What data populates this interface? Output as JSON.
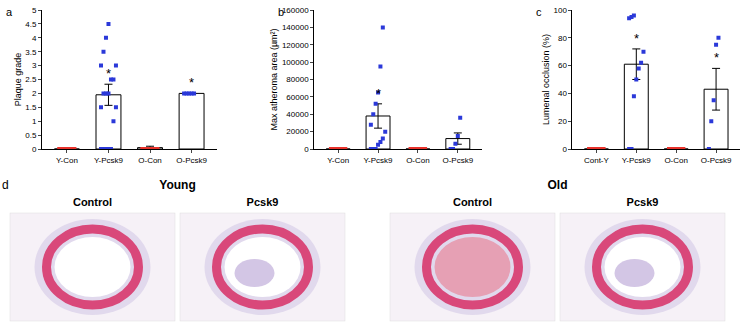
{
  "chart_data": [
    {
      "type": "bar",
      "panel": "a",
      "y_label": "Plaque grade",
      "categories": [
        "Y-Con",
        "Y-Pcsk9",
        "O-Con",
        "O-Pcsk9"
      ],
      "values": [
        0,
        1.95,
        0.05,
        2
      ],
      "error": [
        0,
        0.38,
        0.05,
        0
      ],
      "points": [
        [
          0,
          0,
          0,
          0,
          0,
          0,
          0,
          0,
          0
        ],
        [
          0,
          0,
          0,
          0,
          0,
          1,
          1.5,
          1.5,
          2,
          2,
          2,
          2.5,
          2.5,
          3,
          3,
          3.5,
          4,
          4.5
        ],
        [
          0,
          0,
          0,
          0,
          0,
          0,
          0,
          0
        ],
        [
          2,
          2,
          2,
          2,
          2
        ]
      ],
      "color": "#ffffff",
      "colors": [
        "#e8322b",
        "#2b39d9",
        "#e8322b",
        "#2b39d9"
      ],
      "marker": "square",
      "ylim": [
        0,
        5
      ],
      "yticks": [
        0,
        0.5,
        1,
        1.5,
        2,
        2.5,
        3,
        3.5,
        4,
        4.5,
        5
      ],
      "grid": false,
      "annotations": [
        {
          "category": "Y-Pcsk9",
          "text": "*"
        },
        {
          "category": "O-Pcsk9",
          "text": "*"
        }
      ]
    },
    {
      "type": "bar",
      "panel": "b",
      "y_label": "Max atheroma area (µm²)",
      "categories": [
        "Y-Con",
        "Y-Pcsk9",
        "O-Con",
        "O-Pcsk9"
      ],
      "values": [
        0,
        38000,
        0,
        12000
      ],
      "error": [
        0,
        14000,
        0,
        6500
      ],
      "points": [
        [
          0,
          0,
          0,
          0,
          0,
          0,
          0,
          0
        ],
        [
          0,
          0,
          0,
          5000,
          8000,
          12000,
          20000,
          28000,
          40000,
          52000,
          65000,
          95000,
          140000
        ],
        [
          0,
          0,
          0,
          0,
          0,
          0,
          0,
          0
        ],
        [
          0,
          0,
          6000,
          15000,
          36000
        ]
      ],
      "color": "#ffffff",
      "colors": [
        "#e8322b",
        "#2b39d9",
        "#e8322b",
        "#2b39d9"
      ],
      "marker": "square",
      "ylim": [
        0,
        160000
      ],
      "yticks": [
        0,
        20000,
        40000,
        60000,
        80000,
        100000,
        120000,
        140000,
        160000
      ],
      "grid": false,
      "annotations": [
        {
          "category": "Y-Pcsk9",
          "text": "*"
        }
      ]
    },
    {
      "type": "bar",
      "panel": "c",
      "y_label": "Lumenal occlusion (%)",
      "categories": [
        "Cont-Y",
        "Y-Pcsk9",
        "O-Con",
        "O-Pcsk9"
      ],
      "values": [
        0,
        61,
        0,
        43
      ],
      "error": [
        0,
        11,
        0,
        15
      ],
      "points": [
        [
          0,
          0,
          0,
          0,
          0,
          0,
          0,
          0,
          0
        ],
        [
          0,
          0,
          38,
          50,
          58,
          62,
          70,
          94,
          95,
          96
        ],
        [
          0,
          0,
          0,
          0,
          0,
          0,
          0,
          0
        ],
        [
          0,
          20,
          35,
          75,
          80
        ]
      ],
      "color": "#ffffff",
      "colors": [
        "#e8322b",
        "#2b39d9",
        "#e8322b",
        "#2b39d9"
      ],
      "marker": "square",
      "ylim": [
        0,
        100
      ],
      "yticks": [
        0,
        20,
        40,
        60,
        80,
        100
      ],
      "grid": false,
      "annotations": [
        {
          "category": "Y-Pcsk9",
          "text": "*"
        },
        {
          "category": "O-Pcsk9",
          "text": "*"
        }
      ]
    }
  ],
  "panel_d": {
    "label": "d",
    "groups": [
      {
        "title": "Young",
        "columns": [
          "Control",
          "Pcsk9"
        ]
      },
      {
        "title": "Old",
        "columns": [
          "Control",
          "Pcsk9"
        ]
      }
    ]
  }
}
